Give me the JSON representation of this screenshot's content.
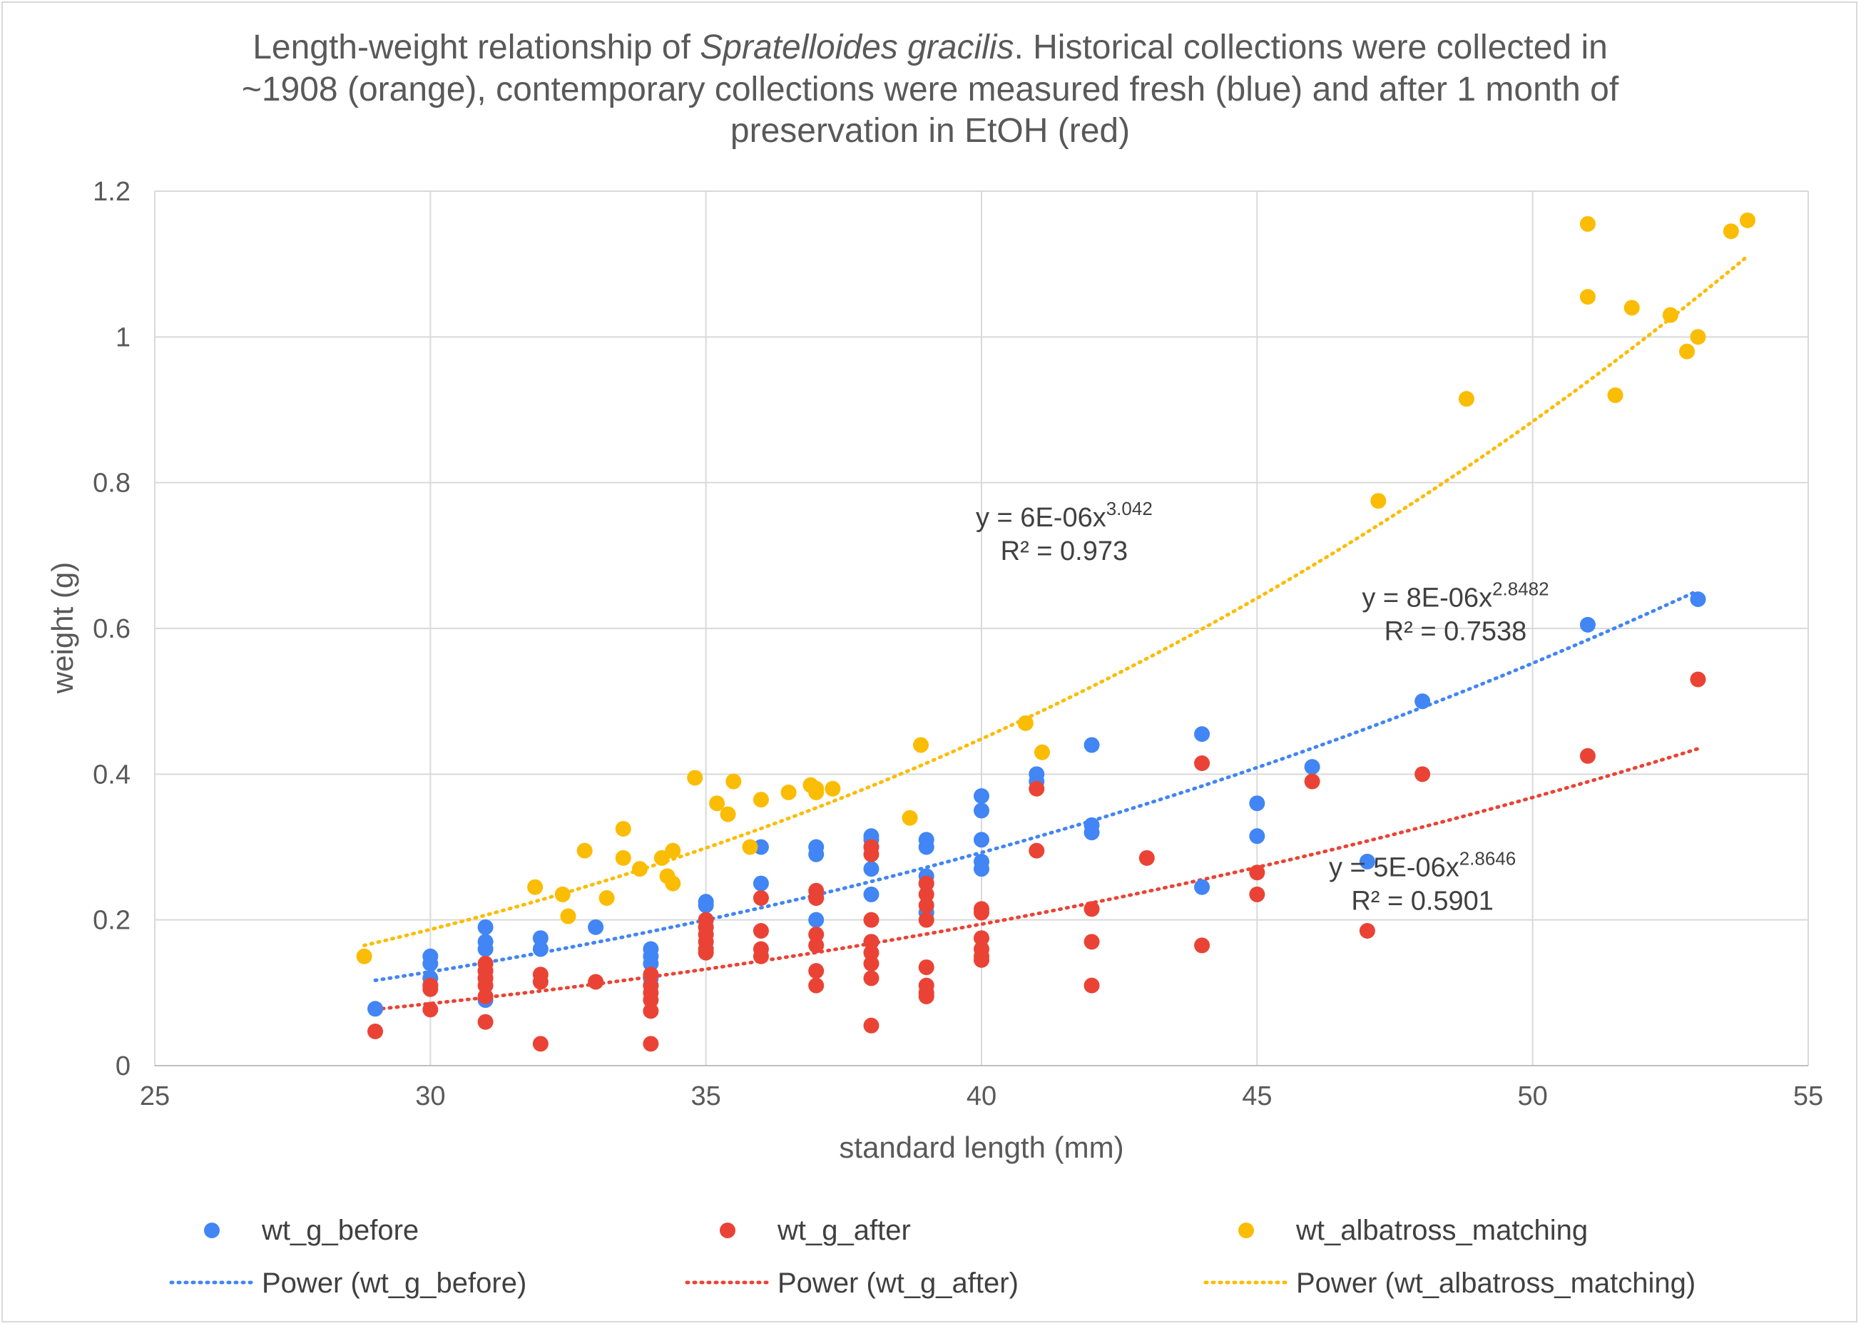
{
  "chart_data": {
    "type": "scatter",
    "title": {
      "line1_prefix": "Length-weight relationship of ",
      "line1_italic": "Spratelloides gracilis",
      "line1_suffix": ". Historical collections were collected in",
      "line2": "~1908 (orange), contemporary collections were measured fresh (blue) and after 1 month of",
      "line3": "preservation in EtOH (red)"
    },
    "xlabel": "standard length (mm)",
    "ylabel": "weight (g)",
    "xlim": [
      25,
      55
    ],
    "ylim": [
      0,
      1.2
    ],
    "xticks": [
      "25",
      "30",
      "35",
      "40",
      "45",
      "50",
      "55"
    ],
    "yticks": [
      "0",
      "0.2",
      "0.4",
      "0.6",
      "0.8",
      "1",
      "1.2"
    ],
    "grid": true,
    "legend_position": "bottom",
    "series": [
      {
        "name": "wt_g_before",
        "color": "#4285f4",
        "points": [
          [
            29,
            0.078
          ],
          [
            30,
            0.15
          ],
          [
            30,
            0.14
          ],
          [
            30,
            0.12
          ],
          [
            30,
            0.11
          ],
          [
            31,
            0.19
          ],
          [
            31,
            0.17
          ],
          [
            31,
            0.16
          ],
          [
            31,
            0.13
          ],
          [
            31,
            0.12
          ],
          [
            31,
            0.09
          ],
          [
            32,
            0.175
          ],
          [
            32,
            0.16
          ],
          [
            33,
            0.19
          ],
          [
            34,
            0.16
          ],
          [
            34,
            0.15
          ],
          [
            34,
            0.14
          ],
          [
            34,
            0.12
          ],
          [
            34,
            0.11
          ],
          [
            35,
            0.225
          ],
          [
            35,
            0.22
          ],
          [
            35,
            0.2
          ],
          [
            35,
            0.19
          ],
          [
            36,
            0.3
          ],
          [
            36,
            0.25
          ],
          [
            37,
            0.3
          ],
          [
            37,
            0.29
          ],
          [
            37,
            0.23
          ],
          [
            37,
            0.2
          ],
          [
            38,
            0.315
          ],
          [
            38,
            0.31
          ],
          [
            38,
            0.3
          ],
          [
            38,
            0.27
          ],
          [
            38,
            0.235
          ],
          [
            38,
            0.17
          ],
          [
            39,
            0.31
          ],
          [
            39,
            0.3
          ],
          [
            39,
            0.26
          ],
          [
            39,
            0.25
          ],
          [
            39,
            0.21
          ],
          [
            40,
            0.37
          ],
          [
            40,
            0.35
          ],
          [
            40,
            0.31
          ],
          [
            40,
            0.28
          ],
          [
            40,
            0.27
          ],
          [
            41,
            0.4
          ],
          [
            41,
            0.39
          ],
          [
            42,
            0.44
          ],
          [
            42,
            0.33
          ],
          [
            42,
            0.32
          ],
          [
            44,
            0.455
          ],
          [
            44,
            0.245
          ],
          [
            45,
            0.36
          ],
          [
            45,
            0.315
          ],
          [
            46,
            0.41
          ],
          [
            47,
            0.28
          ],
          [
            48,
            0.5
          ],
          [
            51,
            0.605
          ],
          [
            53,
            0.64
          ]
        ],
        "trendline": {
          "label": "Power (wt_g_before)",
          "a": 8e-06,
          "b": 2.8482,
          "x_range": [
            29,
            53
          ],
          "equation_prefix": "y = 8E-06x",
          "equation_exponent": "2.8482",
          "r2": "R² = 0.7538",
          "equation_x": 48.6,
          "equation_y": 0.63
        }
      },
      {
        "name": "wt_g_after",
        "color": "#ea4335",
        "points": [
          [
            29,
            0.047
          ],
          [
            30,
            0.11
          ],
          [
            30,
            0.105
          ],
          [
            30,
            0.077
          ],
          [
            31,
            0.14
          ],
          [
            31,
            0.13
          ],
          [
            31,
            0.12
          ],
          [
            31,
            0.11
          ],
          [
            31,
            0.095
          ],
          [
            31,
            0.06
          ],
          [
            32,
            0.125
          ],
          [
            32,
            0.115
          ],
          [
            32,
            0.03
          ],
          [
            33,
            0.115
          ],
          [
            34,
            0.125
          ],
          [
            34,
            0.11
          ],
          [
            34,
            0.1
          ],
          [
            34,
            0.09
          ],
          [
            34,
            0.075
          ],
          [
            34,
            0.03
          ],
          [
            35,
            0.2
          ],
          [
            35,
            0.19
          ],
          [
            35,
            0.18
          ],
          [
            35,
            0.17
          ],
          [
            35,
            0.16
          ],
          [
            35,
            0.155
          ],
          [
            36,
            0.23
          ],
          [
            36,
            0.185
          ],
          [
            36,
            0.16
          ],
          [
            36,
            0.15
          ],
          [
            37,
            0.24
          ],
          [
            37,
            0.23
          ],
          [
            37,
            0.18
          ],
          [
            37,
            0.165
          ],
          [
            37,
            0.13
          ],
          [
            37,
            0.11
          ],
          [
            38,
            0.3
          ],
          [
            38,
            0.29
          ],
          [
            38,
            0.2
          ],
          [
            38,
            0.17
          ],
          [
            38,
            0.155
          ],
          [
            38,
            0.14
          ],
          [
            38,
            0.12
          ],
          [
            38,
            0.055
          ],
          [
            39,
            0.25
          ],
          [
            39,
            0.235
          ],
          [
            39,
            0.22
          ],
          [
            39,
            0.2
          ],
          [
            39,
            0.135
          ],
          [
            39,
            0.11
          ],
          [
            39,
            0.1
          ],
          [
            39,
            0.095
          ],
          [
            40,
            0.215
          ],
          [
            40,
            0.21
          ],
          [
            40,
            0.175
          ],
          [
            40,
            0.16
          ],
          [
            40,
            0.15
          ],
          [
            40,
            0.145
          ],
          [
            41,
            0.38
          ],
          [
            41,
            0.295
          ],
          [
            42,
            0.215
          ],
          [
            42,
            0.17
          ],
          [
            42,
            0.11
          ],
          [
            43,
            0.285
          ],
          [
            44,
            0.415
          ],
          [
            44,
            0.165
          ],
          [
            45,
            0.265
          ],
          [
            45,
            0.235
          ],
          [
            46,
            0.39
          ],
          [
            47,
            0.185
          ],
          [
            48,
            0.4
          ],
          [
            51,
            0.425
          ],
          [
            53,
            0.53
          ]
        ],
        "trendline": {
          "label": "Power (wt_g_after)",
          "a": 5e-06,
          "b": 2.8646,
          "x_range": [
            29,
            53
          ],
          "equation_prefix": "y = 5E-06x",
          "equation_exponent": "2.8646",
          "r2": "R² = 0.5901",
          "equation_x": 48,
          "equation_y": 0.26
        }
      },
      {
        "name": "wt_albatross_matching",
        "color": "#fbbc04",
        "points": [
          [
            28.8,
            0.15
          ],
          [
            31.9,
            0.245
          ],
          [
            32.4,
            0.235
          ],
          [
            32.5,
            0.205
          ],
          [
            32.8,
            0.295
          ],
          [
            33.2,
            0.23
          ],
          [
            33.5,
            0.325
          ],
          [
            33.5,
            0.285
          ],
          [
            33.8,
            0.27
          ],
          [
            34.2,
            0.285
          ],
          [
            34.3,
            0.26
          ],
          [
            34.4,
            0.295
          ],
          [
            34.4,
            0.25
          ],
          [
            34.8,
            0.395
          ],
          [
            35.2,
            0.36
          ],
          [
            35.4,
            0.345
          ],
          [
            35.5,
            0.39
          ],
          [
            35.8,
            0.3
          ],
          [
            36,
            0.365
          ],
          [
            36.5,
            0.375
          ],
          [
            36.9,
            0.385
          ],
          [
            37,
            0.375
          ],
          [
            37,
            0.38
          ],
          [
            37.3,
            0.38
          ],
          [
            38.7,
            0.34
          ],
          [
            38.9,
            0.44
          ],
          [
            40.8,
            0.47
          ],
          [
            41.1,
            0.43
          ],
          [
            47.2,
            0.775
          ],
          [
            48.8,
            0.915
          ],
          [
            51,
            1.155
          ],
          [
            51,
            1.055
          ],
          [
            51.5,
            0.92
          ],
          [
            51.8,
            1.04
          ],
          [
            52.5,
            1.03
          ],
          [
            52.8,
            0.98
          ],
          [
            53,
            1
          ],
          [
            53.6,
            1.145
          ],
          [
            53.9,
            1.16
          ]
        ],
        "trendline": {
          "label": "Power (wt_albatross_matching)",
          "a": 6e-06,
          "b": 3.042,
          "x_range": [
            28.8,
            53.9
          ],
          "equation_prefix": "y = 6E-06x",
          "equation_exponent": "3.042",
          "r2": "R² = 0.973",
          "equation_x": 41.5,
          "equation_y": 0.74
        }
      }
    ]
  }
}
